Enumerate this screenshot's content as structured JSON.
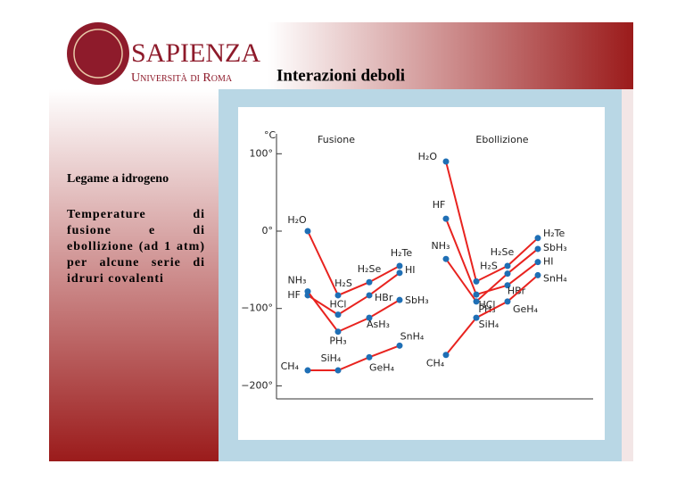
{
  "header": {
    "brand": "SAPIENZA",
    "university": "Università di Roma",
    "title": "Interazioni deboli"
  },
  "sidebar": {
    "heading": "Legame a idrogeno",
    "text": "Temperature di fusione e di ebollizione (ad 1 atm) per alcune serie di idruri covalenti"
  },
  "chart_data": {
    "type": "line",
    "y_label": "°C",
    "ylim": [
      -220,
      110
    ],
    "yticks": [
      {
        "value": 100,
        "label": "100°"
      },
      {
        "value": 0,
        "label": "0°"
      },
      {
        "value": -100,
        "label": "−100°"
      },
      {
        "value": -200,
        "label": "−200°"
      }
    ],
    "line_color": "#e8231f",
    "marker_color": "#1f6fb5",
    "panels": [
      {
        "title": "Fusione",
        "series": [
          {
            "values": [
              0,
              -83,
              -66,
              -45
            ],
            "point_labels": [
              "H₂O",
              "H₂S",
              "H₂Se",
              "H₂Te"
            ]
          },
          {
            "values": [
              -83,
              -108,
              -83,
              -54
            ],
            "point_labels": [
              "HF",
              "HCl",
              "HBr",
              "HI"
            ]
          },
          {
            "values": [
              -78,
              -130,
              -112,
              -89
            ],
            "point_labels": [
              "NH₃",
              "PH₃",
              "AsH₃",
              "SbH₃"
            ]
          },
          {
            "values": [
              -180,
              -180,
              -163,
              -148
            ],
            "point_labels": [
              "CH₄",
              "SiH₄",
              "GeH₄",
              "SnH₄"
            ]
          }
        ]
      },
      {
        "title": "Ebollizione",
        "series": [
          {
            "values": [
              90,
              -65,
              -45,
              -9
            ],
            "point_labels": [
              "H₂O",
              "H₂S",
              "H₂Se",
              "H₂Te"
            ]
          },
          {
            "values": [
              16,
              -82,
              -70,
              -40
            ],
            "point_labels": [
              "HF",
              "HCl",
              "HBr",
              "HI"
            ]
          },
          {
            "values": [
              -36,
              -91,
              -55,
              -23
            ],
            "point_labels": [
              "NH₃",
              "PH₃",
              null,
              "SbH₃"
            ]
          },
          {
            "values": [
              -160,
              -112,
              -91,
              -57
            ],
            "point_labels": [
              "CH₄",
              "SiH₄",
              "GeH₄",
              "SnH₄"
            ]
          }
        ]
      }
    ]
  }
}
